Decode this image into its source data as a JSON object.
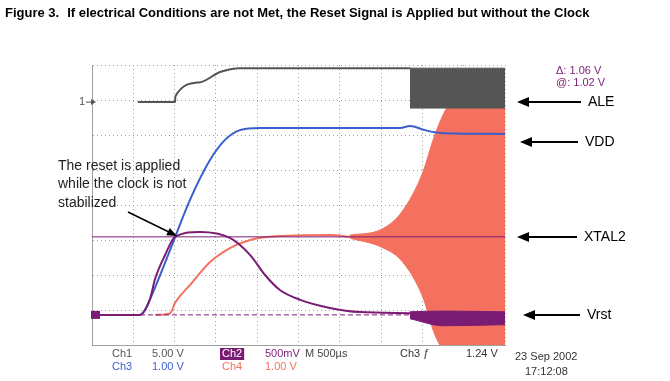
{
  "chart_data": {
    "type": "line",
    "figure_label": "Figure 3.",
    "title": "If electrical Conditions are not Met, the Reset Signal is Applied but without the Clock",
    "xlim": [
      0,
      10
    ],
    "ylim": [
      0,
      8
    ],
    "xticks": [
      0,
      1,
      2,
      3,
      4,
      5,
      6,
      7,
      8,
      9,
      10
    ],
    "yticks": [
      0,
      1,
      2,
      3,
      4,
      5,
      6,
      7,
      8
    ],
    "grid": true,
    "tick_labels": false,
    "series": [
      {
        "name": "ALE",
        "color": "#555555",
        "x": [
          1.11,
          2.01,
          2.02,
          2.62,
          3.1,
          3.58,
          7.7
        ],
        "values": [
          6.94,
          6.94,
          7.11,
          7.51,
          7.8,
          7.91,
          7.91
        ],
        "envelope": {
          "x": [
            7.7,
            10
          ],
          "low": [
            6.77,
            6.77
          ],
          "high": [
            7.91,
            7.91
          ]
        }
      },
      {
        "name": "VDD",
        "color": "#3a5fcd",
        "x": [
          0,
          1.16,
          1.28,
          1.4,
          1.89,
          2.37,
          2.86,
          3.22,
          3.58,
          4.07,
          7.46,
          7.7,
          8.06,
          8.43,
          10
        ],
        "values": [
          0.86,
          0.86,
          1.0,
          1.29,
          2.71,
          4.14,
          5.29,
          5.86,
          6.14,
          6.2,
          6.2,
          6.26,
          6.14,
          6.06,
          6.03
        ]
      },
      {
        "name": "XTAL2",
        "color": "#f4715f",
        "x": [
          1.53,
          1.89,
          2.01,
          2.37,
          2.86,
          3.34,
          3.83,
          4.31,
          5.76,
          6.25
        ],
        "values": [
          0.86,
          0.9,
          1.2,
          1.71,
          2.37,
          2.77,
          3.0,
          3.09,
          3.14,
          3.09
        ],
        "envelope": {
          "x": [
            6.25,
            7.0,
            7.5,
            8.0,
            8.3,
            8.6,
            9.0,
            9.5,
            10
          ],
          "low": [
            3.05,
            2.8,
            2.4,
            1.4,
            0.3,
            -0.3,
            -0.6,
            -0.7,
            -0.7
          ],
          "high": [
            3.14,
            3.3,
            3.8,
            4.9,
            6.0,
            6.8,
            7.3,
            7.4,
            7.43
          ]
        }
      },
      {
        "name": "Vrst",
        "color": "#7b1c74",
        "x": [
          0,
          1.16,
          1.4,
          1.53,
          1.77,
          2.01,
          2.62,
          3.34,
          3.83,
          4.19,
          4.55,
          5.04,
          5.76,
          6.49,
          7.7
        ],
        "values": [
          0.86,
          0.86,
          1.3,
          1.9,
          2.57,
          3.09,
          3.23,
          3.06,
          2.57,
          2.0,
          1.57,
          1.29,
          1.06,
          0.94,
          0.91
        ],
        "envelope": {
          "x": [
            7.7,
            8.5,
            10
          ],
          "low": [
            0.75,
            0.55,
            0.58
          ],
          "high": [
            0.95,
            0.97,
            0.95
          ]
        }
      }
    ],
    "cursors": [
      0.86,
      3.09
    ],
    "cursor_readout": [
      "Δ: 1.06 V",
      "@: 1.02 V"
    ],
    "annotation": [
      "The reset is applied",
      "while the clock is not",
      "stabilized"
    ],
    "ground_marker": {
      "label": "1",
      "value": 6.94
    },
    "readouts": [
      [
        "Ch1",
        "5.00 V",
        "Ch2",
        "500mV",
        "M 500µs",
        "Ch3 ƒ",
        "1.24 V"
      ],
      [
        "Ch3",
        "1.00 V",
        "Ch4",
        "1.00 V"
      ]
    ],
    "timestamp": [
      "23 Sep 2002",
      "17:12:08"
    ]
  }
}
